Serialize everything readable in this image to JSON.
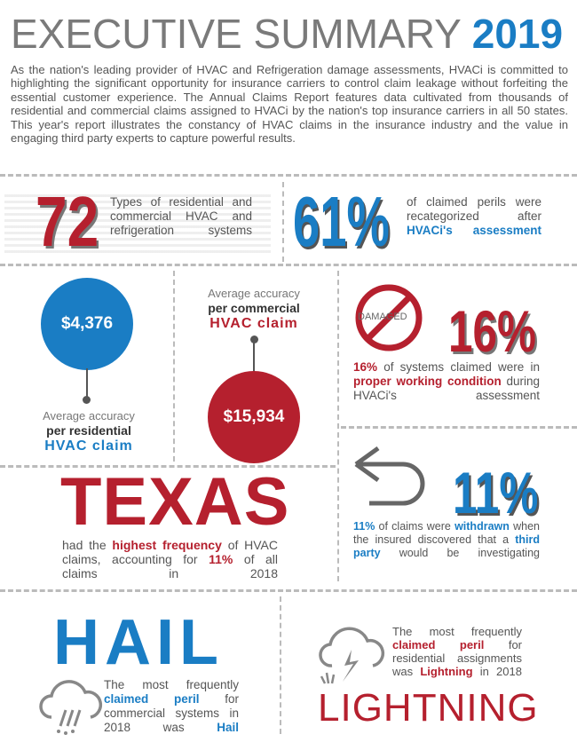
{
  "header": {
    "title": "EXECUTIVE SUMMARY",
    "year": "2019"
  },
  "intro": "As the nation's leading provider of HVAC and Refrigeration damage assessments, HVACi is committed to highlighting the significant opportunity for insurance carriers to control claim leakage without forfeiting the essential customer experience. The Annual Claims Report features data cultivated from thousands of residential and commercial claims assigned to HVACi by the nation's top insurance carriers in all 50 states. This year's report illustrates the constancy of HVAC claims in the insurance industry and the value in engaging third party experts to capture powerful results.",
  "stat72": {
    "value": "72",
    "text": "Types of residential and commercial HVAC and refrigeration systems"
  },
  "stat61": {
    "value": "61%",
    "text1": "of claimed perils were recategorized after",
    "text2": "HVACi's assessment"
  },
  "residential": {
    "value": "$4,376",
    "line1": "Average accuracy",
    "line2": "per residential",
    "line3": "HVAC claim"
  },
  "commercial": {
    "value": "$15,934",
    "line1": "Average accuracy",
    "line2": "per commercial",
    "line3": "HVAC claim"
  },
  "stat16": {
    "icon_label": "DAMAGED",
    "value": "16%",
    "t1": "16%",
    "t2": "of systems claimed were in",
    "t3": "proper working condition",
    "t4": "during HVACi's assessment"
  },
  "stat11": {
    "value": "11%",
    "t1": "11%",
    "t2": "of claims were",
    "t3": "withdrawn",
    "t4": "when the insured discovered that a",
    "t5": "third party",
    "t6": "would be investigating"
  },
  "texas": {
    "value": "TEXAS",
    "t1": "had the",
    "t2": "highest frequency",
    "t3": "of HVAC claims, accounting for",
    "t4": "11%",
    "t5": "of all claims in 2018"
  },
  "hail": {
    "value": "HAIL",
    "t1": "The most frequently",
    "t2": "claimed peril",
    "t3": "for commercial systems in 2018 was",
    "t4": "Hail"
  },
  "lightning": {
    "value": "LIGHTNING",
    "t1": "The most frequently",
    "t2": "claimed peril",
    "t3": "for residential assignments was",
    "t4": "Lightning",
    "t5": "in 2018"
  },
  "colors": {
    "red": "#b5202e",
    "blue": "#1a7dc4",
    "gray": "#5a5a5a"
  }
}
